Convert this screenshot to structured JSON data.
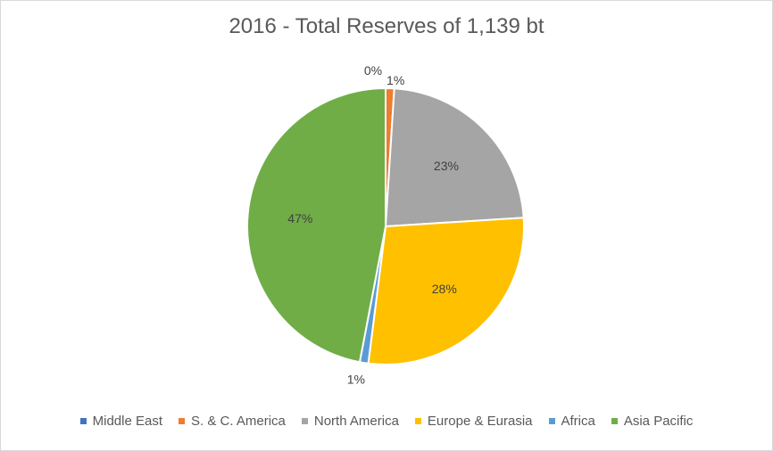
{
  "chart_data": {
    "type": "pie",
    "title": "2016 - Total Reserves of 1,139 bt",
    "slices": [
      {
        "name": "Middle East",
        "value": 0,
        "label": "0%",
        "color": "#4472C4"
      },
      {
        "name": "S. & C. America",
        "value": 1,
        "label": "1%",
        "color": "#ED7D31"
      },
      {
        "name": "North America",
        "value": 23,
        "label": "23%",
        "color": "#A5A5A5"
      },
      {
        "name": "Europe & Eurasia",
        "value": 28,
        "label": "28%",
        "color": "#FFC000"
      },
      {
        "name": "Africa",
        "value": 1,
        "label": "1%",
        "color": "#5B9BD5"
      },
      {
        "name": "Asia Pacific",
        "value": 47,
        "label": "47%",
        "color": "#70AD47"
      }
    ],
    "legend_position": "bottom",
    "start_angle_deg": 0,
    "direction": "clockwise"
  }
}
